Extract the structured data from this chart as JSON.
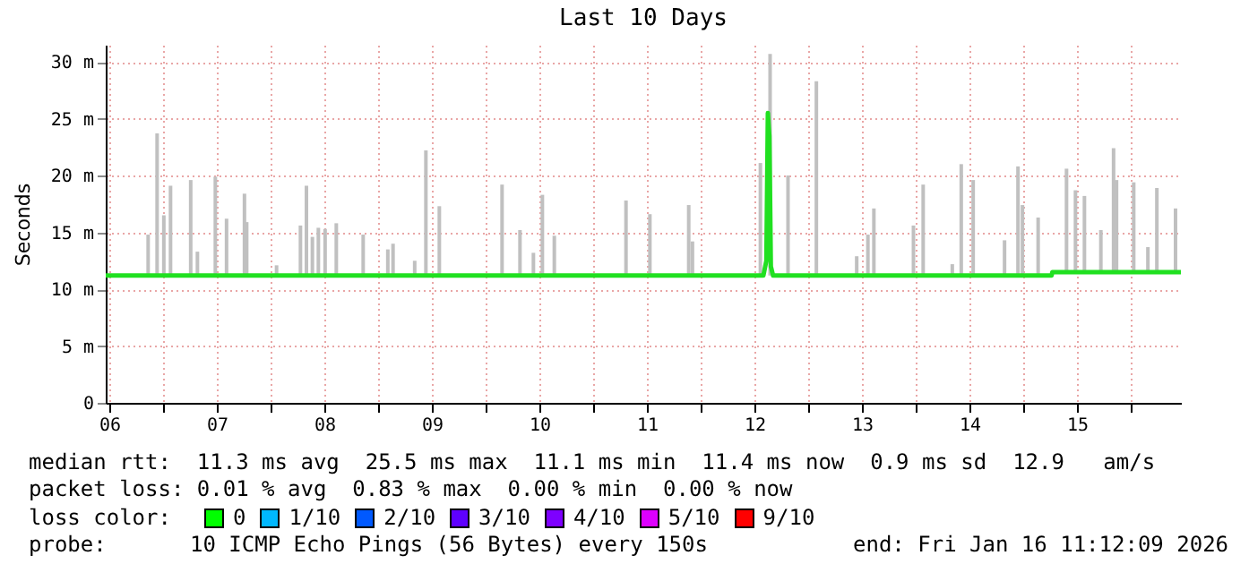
{
  "chart_data": {
    "type": "line",
    "title": "Last 10 Days",
    "ylabel": "Seconds",
    "xlim": [
      "2026-01-06T11:12",
      "2026-01-16T11:12"
    ],
    "xticks": [
      {
        "value": "2026-01-06T12:00",
        "label": "06"
      },
      {
        "value": "2026-01-07T00:00",
        "label": null
      },
      {
        "value": "2026-01-07T12:00",
        "label": "07"
      },
      {
        "value": "2026-01-08T00:00",
        "label": null
      },
      {
        "value": "2026-01-08T12:00",
        "label": "08"
      },
      {
        "value": "2026-01-09T00:00",
        "label": null
      },
      {
        "value": "2026-01-09T12:00",
        "label": "09"
      },
      {
        "value": "2026-01-10T00:00",
        "label": null
      },
      {
        "value": "2026-01-10T12:00",
        "label": "10"
      },
      {
        "value": "2026-01-11T00:00",
        "label": null
      },
      {
        "value": "2026-01-11T12:00",
        "label": "11"
      },
      {
        "value": "2026-01-12T00:00",
        "label": null
      },
      {
        "value": "2026-01-12T12:00",
        "label": "12"
      },
      {
        "value": "2026-01-13T00:00",
        "label": null
      },
      {
        "value": "2026-01-13T12:00",
        "label": "13"
      },
      {
        "value": "2026-01-14T00:00",
        "label": null
      },
      {
        "value": "2026-01-14T12:00",
        "label": "14"
      },
      {
        "value": "2026-01-15T00:00",
        "label": null
      },
      {
        "value": "2026-01-15T12:00",
        "label": "15"
      },
      {
        "value": "2026-01-16T00:00",
        "label": null
      }
    ],
    "ylim": [
      0,
      31.5
    ],
    "yticks": [
      0,
      {
        "value": 5,
        "label": "5 m"
      },
      {
        "value": 10,
        "label": "10 m"
      },
      {
        "value": 15,
        "label": "15 m"
      },
      {
        "value": 20,
        "label": "20 m"
      },
      {
        "value": 25,
        "label": "25 m"
      },
      {
        "value": 30,
        "label": "30 m"
      }
    ],
    "grid": true,
    "marker": "none",
    "line_style": "solid",
    "series": [
      {
        "color": "#20e020",
        "x": [
          "2026-01-06T11:12",
          "2026-01-06T20:40",
          "2026-01-06T22:40",
          "2026-01-07T00:10",
          "2026-01-07T01:40",
          "2026-01-07T06:10",
          "2026-01-07T07:40",
          "2026-01-07T11:40",
          "2026-01-07T14:10",
          "2026-01-07T18:10",
          "2026-01-07T18:40",
          "2026-01-08T01:20",
          "2026-01-08T06:40",
          "2026-01-08T08:00",
          "2026-01-08T09:20",
          "2026-01-08T10:40",
          "2026-01-08T12:10",
          "2026-01-08T14:40",
          "2026-01-08T20:40",
          "2026-01-09T02:10",
          "2026-01-09T03:20",
          "2026-01-09T08:10",
          "2026-01-09T10:40",
          "2026-01-09T13:40",
          "2026-01-10T03:40",
          "2026-01-10T07:40",
          "2026-01-10T10:40",
          "2026-01-10T12:40",
          "2026-01-10T15:20",
          "2026-01-11T07:20",
          "2026-01-11T12:40",
          "2026-01-11T21:20",
          "2026-01-11T22:10",
          "2026-01-12T13:20",
          "2026-01-12T14:00",
          "2026-01-12T14:40",
          "2026-01-12T15:00",
          "2026-01-12T15:20",
          "2026-01-12T15:30",
          "2026-01-12T15:40",
          "2026-01-12T16:10",
          "2026-01-12T19:30",
          "2026-01-13T01:50",
          "2026-01-13T10:50",
          "2026-01-13T13:20",
          "2026-01-13T14:40",
          "2026-01-13T23:30",
          "2026-01-14T01:40",
          "2026-01-14T08:10",
          "2026-01-14T10:10",
          "2026-01-14T12:50",
          "2026-01-14T19:50",
          "2026-01-14T22:50",
          "2026-01-14T23:50",
          "2026-01-15T03:20",
          "2026-01-15T06:20",
          "2026-01-15T06:30",
          "2026-01-15T09:40",
          "2026-01-15T11:40",
          "2026-01-15T13:40",
          "2026-01-15T17:20",
          "2026-01-15T20:10",
          "2026-01-15T20:50",
          "2026-01-16T00:40",
          "2026-01-16T03:50",
          "2026-01-16T05:50",
          "2026-01-16T10:00",
          "2026-01-16T11:12"
        ],
        "values": [
          11.2,
          11.2,
          11.2,
          11.2,
          11.2,
          11.2,
          11.2,
          11.2,
          11.2,
          11.2,
          11.2,
          11.2,
          11.2,
          11.2,
          11.2,
          11.2,
          11.2,
          11.2,
          11.2,
          11.2,
          11.2,
          11.2,
          11.2,
          11.2,
          11.2,
          11.2,
          11.2,
          11.2,
          11.2,
          11.2,
          11.2,
          11.2,
          11.2,
          11.2,
          11.2,
          12.5,
          25.5,
          23.5,
          18.0,
          12.0,
          11.2,
          11.2,
          11.2,
          11.2,
          11.2,
          11.2,
          11.2,
          11.2,
          11.2,
          11.2,
          11.2,
          11.2,
          11.2,
          11.2,
          11.2,
          11.2,
          11.5,
          11.5,
          11.5,
          11.5,
          11.5,
          11.5,
          11.5,
          11.5,
          11.5,
          11.5,
          11.5,
          11.5
        ],
        "errors": [
          null,
          [
            11.2,
            14.8
          ],
          [
            11.2,
            23.7
          ],
          [
            11.2,
            16.5
          ],
          [
            11.2,
            19.1
          ],
          [
            11.2,
            19.6
          ],
          [
            11.2,
            13.3
          ],
          [
            11.2,
            19.9
          ],
          [
            11.2,
            16.2
          ],
          [
            11.2,
            18.4
          ],
          [
            11.2,
            15.9
          ],
          [
            11.2,
            12.1
          ],
          [
            11.2,
            15.6
          ],
          [
            11.2,
            19.1
          ],
          [
            11.2,
            14.6
          ],
          [
            11.2,
            15.4
          ],
          [
            11.2,
            15.3
          ],
          [
            11.2,
            15.8
          ],
          [
            11.2,
            14.8
          ],
          [
            11.2,
            13.5
          ],
          [
            11.2,
            14.0
          ],
          [
            11.2,
            12.5
          ],
          [
            11.2,
            22.2
          ],
          [
            11.2,
            17.3
          ],
          [
            11.2,
            19.2
          ],
          [
            11.2,
            15.2
          ],
          [
            11.2,
            13.2
          ],
          [
            11.2,
            18.3
          ],
          [
            11.2,
            14.7
          ],
          [
            11.2,
            17.8
          ],
          [
            11.2,
            16.6
          ],
          [
            11.2,
            17.4
          ],
          [
            11.2,
            14.2
          ],
          [
            11.2,
            21.1
          ],
          null,
          null,
          null,
          null,
          [
            11.2,
            30.7
          ],
          null,
          null,
          [
            11.2,
            20.0
          ],
          [
            11.2,
            28.3
          ],
          [
            11.2,
            12.9
          ],
          [
            11.2,
            14.8
          ],
          [
            11.2,
            17.1
          ],
          [
            11.2,
            15.6
          ],
          [
            11.2,
            19.2
          ],
          [
            11.2,
            12.2
          ],
          [
            11.2,
            21.0
          ],
          [
            11.2,
            19.6
          ],
          [
            11.2,
            14.3
          ],
          [
            11.2,
            20.8
          ],
          [
            11.2,
            17.4
          ],
          [
            11.2,
            16.3
          ],
          null,
          null,
          [
            11.5,
            20.6
          ],
          [
            11.5,
            18.7
          ],
          [
            11.5,
            18.2
          ],
          [
            11.5,
            15.2
          ],
          [
            11.5,
            22.4
          ],
          [
            11.5,
            19.6
          ],
          [
            11.5,
            19.4
          ],
          [
            11.5,
            13.7
          ],
          [
            11.5,
            18.9
          ],
          [
            11.5,
            17.1
          ],
          null
        ]
      }
    ],
    "annotations": [
      "median rtt:  11.3 ms avg  25.5 ms max  11.1 ms min  11.4 ms now  0.9 ms sd  12.9   am/s",
      "packet loss: 0.01 % avg  0.83 % max  0.00 % min  0.00 % now",
      "loss color:",
      "0",
      "1/10",
      "2/10",
      "3/10",
      "4/10",
      "5/10",
      "9/10",
      "probe:",
      "10 ICMP Echo Pings (56 Bytes) every 150s",
      "end: Fri Jan 16 11:12:09 2026"
    ]
  }
}
